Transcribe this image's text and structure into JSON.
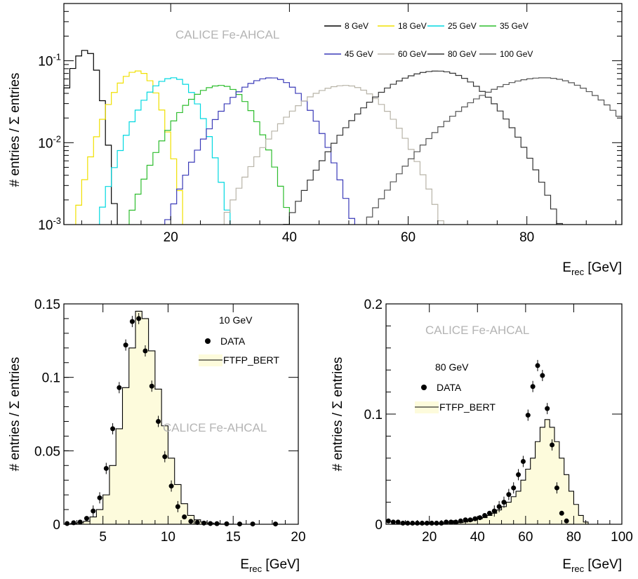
{
  "chart_data": [
    {
      "type": "line",
      "panel": "top",
      "watermark": "CALICE Fe-AHCAL",
      "xlabel": "E",
      "xlabel_sub": "rec",
      "xlabel_unit": " [GeV]",
      "ylabel": "# entries / Σ entries",
      "xlim": [
        2,
        96
      ],
      "ylim": [
        0.001,
        0.5
      ],
      "yscale": "log",
      "xticks": [
        20,
        40,
        60,
        80
      ],
      "yticks": [
        {
          "value": 0.001,
          "mant": "10",
          "exp": "-3"
        },
        {
          "value": 0.01,
          "mant": "10",
          "exp": "-2"
        },
        {
          "value": 0.1,
          "mant": "10",
          "exp": "-1"
        }
      ],
      "legend_position": "top-right",
      "series": [
        {
          "name": "8 GeV",
          "color": "#000000",
          "mean": 5.8,
          "sigma": 1.6,
          "peak": 0.135,
          "tail": 0.5
        },
        {
          "name": "18 GeV",
          "color": "#f0e000",
          "mean": 14.5,
          "sigma": 2.7,
          "peak": 0.075,
          "tail": 0.55
        },
        {
          "name": "25 GeV",
          "color": "#00d8e0",
          "mean": 20.5,
          "sigma": 3.3,
          "peak": 0.062,
          "tail": 0.55
        },
        {
          "name": "35 GeV",
          "color": "#2dbd2d",
          "mean": 28.5,
          "sigma": 4.2,
          "peak": 0.05,
          "tail": 0.55
        },
        {
          "name": "45 GeV",
          "color": "#3a3ab8",
          "mean": 37.0,
          "sigma": 4.8,
          "peak": 0.062,
          "tail": 0.6
        },
        {
          "name": "60 GeV",
          "color": "#b8b4a8",
          "mean": 49.5,
          "sigma": 5.8,
          "peak": 0.05,
          "tail": 0.6
        },
        {
          "name": "80 GeV",
          "color": "#333333",
          "mean": 65.0,
          "sigma": 7.0,
          "peak": 0.075,
          "tail": 0.65
        },
        {
          "name": "100 GeV",
          "color": "#555555",
          "mean": 83.0,
          "sigma": 8.5,
          "peak": 0.062,
          "tail": 0.65
        }
      ]
    },
    {
      "type": "bar",
      "panel": "bottom-left",
      "watermark": "CALICE Fe-AHCAL",
      "xlabel": "E",
      "xlabel_sub": "rec",
      "xlabel_unit": " [GeV]",
      "ylabel": "# entries / Σ entries",
      "xlim": [
        2,
        20
      ],
      "ylim": [
        0,
        0.15
      ],
      "xticks": [
        5,
        10,
        15,
        20
      ],
      "ytick_labels": [
        {
          "value": 0,
          "label": "0"
        },
        {
          "value": 0.05,
          "label": "0.05"
        },
        {
          "value": 0.1,
          "label": "0.1"
        },
        {
          "value": 0.15,
          "label": "0.15"
        }
      ],
      "legend_title": "10 GeV",
      "legend_data": "DATA",
      "legend_mc": "FTFP_BERT",
      "bin_width": 0.5,
      "mc_bins": [
        [
          2.0,
          0.0
        ],
        [
          2.5,
          0.0005
        ],
        [
          3.0,
          0.001
        ],
        [
          3.5,
          0.002
        ],
        [
          4.0,
          0.005
        ],
        [
          4.5,
          0.01
        ],
        [
          5.0,
          0.02
        ],
        [
          5.5,
          0.04
        ],
        [
          6.0,
          0.065
        ],
        [
          6.5,
          0.093
        ],
        [
          7.0,
          0.12
        ],
        [
          7.5,
          0.145
        ],
        [
          8.0,
          0.14
        ],
        [
          8.5,
          0.118
        ],
        [
          9.0,
          0.092
        ],
        [
          9.5,
          0.067
        ],
        [
          10.0,
          0.045
        ],
        [
          10.5,
          0.027
        ],
        [
          11.0,
          0.014
        ],
        [
          11.5,
          0.006
        ],
        [
          12.0,
          0.003
        ],
        [
          12.5,
          0.0015
        ],
        [
          13.0,
          0.0008
        ],
        [
          13.5,
          0.0004
        ],
        [
          14.0,
          0.0002
        ],
        [
          14.5,
          0.0001
        ],
        [
          15.0,
          0.0
        ]
      ],
      "data_points": [
        {
          "x": 2.25,
          "y": 0.0005
        },
        {
          "x": 2.75,
          "y": 0.001
        },
        {
          "x": 3.25,
          "y": 0.0015
        },
        {
          "x": 3.75,
          "y": 0.004
        },
        {
          "x": 4.25,
          "y": 0.009
        },
        {
          "x": 4.75,
          "y": 0.018
        },
        {
          "x": 5.25,
          "y": 0.038
        },
        {
          "x": 5.75,
          "y": 0.065
        },
        {
          "x": 6.25,
          "y": 0.093
        },
        {
          "x": 6.75,
          "y": 0.122
        },
        {
          "x": 7.25,
          "y": 0.138
        },
        {
          "x": 7.75,
          "y": 0.14
        },
        {
          "x": 8.25,
          "y": 0.118
        },
        {
          "x": 8.75,
          "y": 0.094
        },
        {
          "x": 9.25,
          "y": 0.07
        },
        {
          "x": 9.75,
          "y": 0.046
        },
        {
          "x": 10.25,
          "y": 0.026
        },
        {
          "x": 10.75,
          "y": 0.012
        },
        {
          "x": 11.25,
          "y": 0.005
        },
        {
          "x": 11.75,
          "y": 0.002
        },
        {
          "x": 12.25,
          "y": 0.0012
        },
        {
          "x": 12.75,
          "y": 0.0008
        },
        {
          "x": 13.25,
          "y": 0.0005
        },
        {
          "x": 13.75,
          "y": 0.0004
        },
        {
          "x": 14.5,
          "y": 0.0003
        },
        {
          "x": 15.5,
          "y": 0.0002
        },
        {
          "x": 16.5,
          "y": 0.0002
        },
        {
          "x": 18.25,
          "y": 0.0002
        }
      ]
    },
    {
      "type": "bar",
      "panel": "bottom-right",
      "watermark": "CALICE Fe-AHCAL",
      "xlabel": "E",
      "xlabel_sub": "rec",
      "xlabel_unit": " [GeV]",
      "ylabel": "# entries / Σ entries",
      "xlim": [
        2,
        100
      ],
      "ylim": [
        0,
        0.2
      ],
      "xticks": [
        20,
        40,
        60,
        80,
        100
      ],
      "ytick_labels": [
        {
          "value": 0,
          "label": "0"
        },
        {
          "value": 0.1,
          "label": "0.1"
        },
        {
          "value": 0.2,
          "label": "0.2"
        }
      ],
      "legend_title": "80 GeV",
      "legend_data": "DATA",
      "legend_mc": "FTFP_BERT",
      "bin_width": 2,
      "mc_bins": [
        [
          2,
          0.0
        ],
        [
          30,
          0.001
        ],
        [
          32,
          0.0015
        ],
        [
          34,
          0.002
        ],
        [
          36,
          0.003
        ],
        [
          38,
          0.004
        ],
        [
          40,
          0.005
        ],
        [
          42,
          0.006
        ],
        [
          44,
          0.008
        ],
        [
          46,
          0.01
        ],
        [
          48,
          0.013
        ],
        [
          50,
          0.016
        ],
        [
          52,
          0.02
        ],
        [
          54,
          0.025
        ],
        [
          56,
          0.03
        ],
        [
          58,
          0.04
        ],
        [
          60,
          0.05
        ],
        [
          62,
          0.06
        ],
        [
          64,
          0.075
        ],
        [
          66,
          0.088
        ],
        [
          68,
          0.095
        ],
        [
          70,
          0.088
        ],
        [
          72,
          0.075
        ],
        [
          74,
          0.06
        ],
        [
          76,
          0.045
        ],
        [
          78,
          0.03
        ],
        [
          80,
          0.018
        ],
        [
          82,
          0.008
        ],
        [
          84,
          0.002
        ],
        [
          86,
          0.0
        ]
      ],
      "data_points": [
        {
          "x": 3,
          "y": 0.003
        },
        {
          "x": 5,
          "y": 0.002
        },
        {
          "x": 7,
          "y": 0.002
        },
        {
          "x": 9,
          "y": 0.001
        },
        {
          "x": 11,
          "y": 0.001
        },
        {
          "x": 13,
          "y": 0.001
        },
        {
          "x": 15,
          "y": 0.001
        },
        {
          "x": 17,
          "y": 0.001
        },
        {
          "x": 19,
          "y": 0.001
        },
        {
          "x": 21,
          "y": 0.001
        },
        {
          "x": 23,
          "y": 0.001
        },
        {
          "x": 25,
          "y": 0.001
        },
        {
          "x": 27,
          "y": 0.002
        },
        {
          "x": 29,
          "y": 0.002
        },
        {
          "x": 31,
          "y": 0.002
        },
        {
          "x": 33,
          "y": 0.003
        },
        {
          "x": 35,
          "y": 0.004
        },
        {
          "x": 37,
          "y": 0.004
        },
        {
          "x": 39,
          "y": 0.005
        },
        {
          "x": 41,
          "y": 0.006
        },
        {
          "x": 43,
          "y": 0.008
        },
        {
          "x": 45,
          "y": 0.01
        },
        {
          "x": 47,
          "y": 0.012
        },
        {
          "x": 49,
          "y": 0.016
        },
        {
          "x": 51,
          "y": 0.02
        },
        {
          "x": 53,
          "y": 0.027
        },
        {
          "x": 55,
          "y": 0.033
        },
        {
          "x": 57,
          "y": 0.045
        },
        {
          "x": 59,
          "y": 0.057
        },
        {
          "x": 61,
          "y": 0.099
        },
        {
          "x": 63,
          "y": 0.125
        },
        {
          "x": 65,
          "y": 0.144
        },
        {
          "x": 67,
          "y": 0.135
        },
        {
          "x": 69,
          "y": 0.105
        },
        {
          "x": 71,
          "y": 0.072
        },
        {
          "x": 73,
          "y": 0.033
        },
        {
          "x": 75,
          "y": 0.01
        },
        {
          "x": 77,
          "y": 0.003
        }
      ]
    }
  ]
}
